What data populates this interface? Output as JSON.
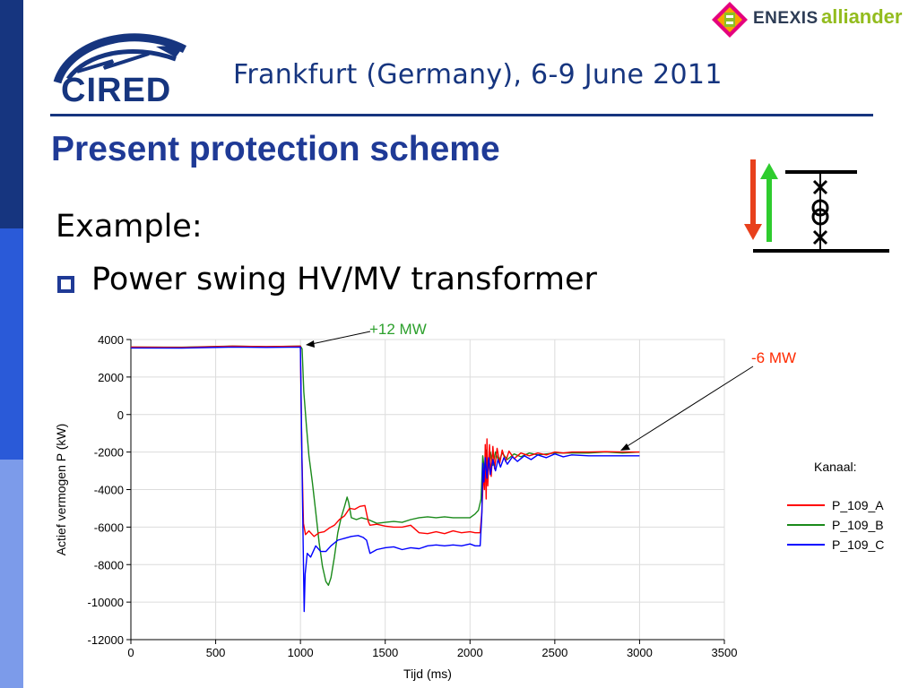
{
  "header": {
    "conference": "Frankfurt (Germany), 6-9 June 2011",
    "logo_text": "CIRED",
    "sponsor1": "ENEXIS",
    "sponsor2": "alliander"
  },
  "slide": {
    "title": "Present protection scheme",
    "intro": "Example:",
    "bullet": "Power swing HV/MV transformer"
  },
  "colors": {
    "navy": "#16357f",
    "title_blue": "#1f3a96",
    "series_a": "#ff0000",
    "series_b": "#1a8a1a",
    "series_c": "#0000ff"
  },
  "chart_data": {
    "type": "line",
    "xlabel": "Tijd (ms)",
    "ylabel": "Actief vermogen P (kW)",
    "xlim": [
      0,
      3500
    ],
    "ylim": [
      -12000,
      4000
    ],
    "xticks": [
      0,
      500,
      1000,
      1500,
      2000,
      2500,
      3000,
      3500
    ],
    "yticks": [
      4000,
      2000,
      0,
      -2000,
      -4000,
      -6000,
      -8000,
      -10000,
      -12000
    ],
    "grid": true,
    "legend_title": "Kanaal:",
    "legend_position": "right",
    "annotations": [
      {
        "text": "+12 MW",
        "color": "#2ca02c"
      },
      {
        "text": "-6 MW",
        "color": "#ff2a00"
      }
    ],
    "series": [
      {
        "name": "P_109_A",
        "color": "#ff0000",
        "points": [
          [
            0,
            3600
          ],
          [
            300,
            3580
          ],
          [
            600,
            3640
          ],
          [
            800,
            3620
          ],
          [
            1000,
            3640
          ],
          [
            1008,
            -2000
          ],
          [
            1018,
            -5800
          ],
          [
            1030,
            -6400
          ],
          [
            1050,
            -6200
          ],
          [
            1080,
            -6500
          ],
          [
            1110,
            -6300
          ],
          [
            1140,
            -6250
          ],
          [
            1170,
            -6050
          ],
          [
            1200,
            -5900
          ],
          [
            1230,
            -5600
          ],
          [
            1260,
            -5400
          ],
          [
            1290,
            -5000
          ],
          [
            1320,
            -5050
          ],
          [
            1350,
            -4900
          ],
          [
            1380,
            -4850
          ],
          [
            1400,
            -5700
          ],
          [
            1410,
            -5900
          ],
          [
            1450,
            -5850
          ],
          [
            1500,
            -5950
          ],
          [
            1550,
            -6000
          ],
          [
            1600,
            -6000
          ],
          [
            1650,
            -5900
          ],
          [
            1700,
            -6300
          ],
          [
            1750,
            -6350
          ],
          [
            1800,
            -6250
          ],
          [
            1850,
            -6350
          ],
          [
            1900,
            -6200
          ],
          [
            1950,
            -6300
          ],
          [
            2000,
            -6250
          ],
          [
            2030,
            -6300
          ],
          [
            2060,
            -6300
          ],
          [
            2070,
            -5200
          ],
          [
            2080,
            -2900
          ],
          [
            2085,
            -4000
          ],
          [
            2090,
            -1600
          ],
          [
            2095,
            -4500
          ],
          [
            2100,
            -1300
          ],
          [
            2105,
            -3800
          ],
          [
            2115,
            -1600
          ],
          [
            2125,
            -3300
          ],
          [
            2135,
            -1700
          ],
          [
            2145,
            -2900
          ],
          [
            2160,
            -1800
          ],
          [
            2175,
            -2600
          ],
          [
            2190,
            -1900
          ],
          [
            2210,
            -2500
          ],
          [
            2230,
            -1950
          ],
          [
            2260,
            -2350
          ],
          [
            2300,
            -2050
          ],
          [
            2350,
            -2200
          ],
          [
            2400,
            -2050
          ],
          [
            2450,
            -2150
          ],
          [
            2500,
            -2000
          ],
          [
            2550,
            -2050
          ],
          [
            2600,
            -2000
          ],
          [
            2700,
            -2000
          ],
          [
            2800,
            -1980
          ],
          [
            2900,
            -2000
          ],
          [
            3000,
            -2000
          ]
        ]
      },
      {
        "name": "P_109_B",
        "color": "#1a8a1a",
        "points": [
          [
            0,
            3600
          ],
          [
            300,
            3590
          ],
          [
            600,
            3650
          ],
          [
            800,
            3620
          ],
          [
            1000,
            3650
          ],
          [
            1010,
            3500
          ],
          [
            1020,
            1200
          ],
          [
            1035,
            -600
          ],
          [
            1050,
            -2200
          ],
          [
            1070,
            -3600
          ],
          [
            1090,
            -5200
          ],
          [
            1110,
            -6800
          ],
          [
            1130,
            -8100
          ],
          [
            1150,
            -8900
          ],
          [
            1165,
            -9100
          ],
          [
            1180,
            -8700
          ],
          [
            1200,
            -7600
          ],
          [
            1220,
            -6300
          ],
          [
            1240,
            -5500
          ],
          [
            1260,
            -4900
          ],
          [
            1275,
            -4400
          ],
          [
            1285,
            -4700
          ],
          [
            1300,
            -5500
          ],
          [
            1330,
            -5600
          ],
          [
            1360,
            -5500
          ],
          [
            1400,
            -5600
          ],
          [
            1450,
            -5800
          ],
          [
            1500,
            -5750
          ],
          [
            1550,
            -5700
          ],
          [
            1600,
            -5750
          ],
          [
            1650,
            -5600
          ],
          [
            1700,
            -5500
          ],
          [
            1750,
            -5450
          ],
          [
            1800,
            -5500
          ],
          [
            1850,
            -5450
          ],
          [
            1900,
            -5500
          ],
          [
            1950,
            -5500
          ],
          [
            2000,
            -5500
          ],
          [
            2030,
            -5300
          ],
          [
            2050,
            -5100
          ],
          [
            2065,
            -4500
          ],
          [
            2075,
            -2200
          ],
          [
            2085,
            -3000
          ],
          [
            2095,
            -1900
          ],
          [
            2105,
            -2900
          ],
          [
            2120,
            -2000
          ],
          [
            2135,
            -2700
          ],
          [
            2150,
            -2000
          ],
          [
            2170,
            -2500
          ],
          [
            2190,
            -2050
          ],
          [
            2220,
            -2400
          ],
          [
            2260,
            -2100
          ],
          [
            2300,
            -2250
          ],
          [
            2350,
            -2050
          ],
          [
            2400,
            -2150
          ],
          [
            2500,
            -2050
          ],
          [
            2600,
            -2050
          ],
          [
            2700,
            -2050
          ],
          [
            2800,
            -2000
          ],
          [
            2900,
            -2050
          ],
          [
            3000,
            -2000
          ]
        ]
      },
      {
        "name": "P_109_C",
        "color": "#0000ff",
        "points": [
          [
            0,
            3550
          ],
          [
            300,
            3540
          ],
          [
            600,
            3600
          ],
          [
            800,
            3580
          ],
          [
            1000,
            3600
          ],
          [
            1008,
            -2000
          ],
          [
            1016,
            -7000
          ],
          [
            1022,
            -10500
          ],
          [
            1028,
            -8500
          ],
          [
            1040,
            -7400
          ],
          [
            1060,
            -7600
          ],
          [
            1090,
            -7000
          ],
          [
            1120,
            -7300
          ],
          [
            1150,
            -7300
          ],
          [
            1180,
            -7000
          ],
          [
            1220,
            -6700
          ],
          [
            1260,
            -6600
          ],
          [
            1300,
            -6500
          ],
          [
            1340,
            -6450
          ],
          [
            1370,
            -6550
          ],
          [
            1390,
            -6700
          ],
          [
            1410,
            -7400
          ],
          [
            1450,
            -7200
          ],
          [
            1500,
            -7100
          ],
          [
            1550,
            -7050
          ],
          [
            1600,
            -7200
          ],
          [
            1650,
            -7100
          ],
          [
            1700,
            -7150
          ],
          [
            1750,
            -7000
          ],
          [
            1800,
            -6950
          ],
          [
            1850,
            -7000
          ],
          [
            1900,
            -6950
          ],
          [
            1950,
            -7000
          ],
          [
            2000,
            -6900
          ],
          [
            2030,
            -7000
          ],
          [
            2060,
            -7000
          ],
          [
            2070,
            -5300
          ],
          [
            2075,
            -2600
          ],
          [
            2082,
            -3600
          ],
          [
            2090,
            -2300
          ],
          [
            2100,
            -3400
          ],
          [
            2110,
            -2300
          ],
          [
            2120,
            -3200
          ],
          [
            2135,
            -2400
          ],
          [
            2150,
            -3000
          ],
          [
            2165,
            -2400
          ],
          [
            2180,
            -2800
          ],
          [
            2200,
            -2300
          ],
          [
            2220,
            -2650
          ],
          [
            2250,
            -2250
          ],
          [
            2280,
            -2500
          ],
          [
            2320,
            -2200
          ],
          [
            2360,
            -2400
          ],
          [
            2400,
            -2150
          ],
          [
            2450,
            -2300
          ],
          [
            2500,
            -2100
          ],
          [
            2550,
            -2250
          ],
          [
            2600,
            -2150
          ],
          [
            2700,
            -2200
          ],
          [
            2800,
            -2200
          ],
          [
            2900,
            -2200
          ],
          [
            3000,
            -2200
          ]
        ]
      }
    ]
  }
}
